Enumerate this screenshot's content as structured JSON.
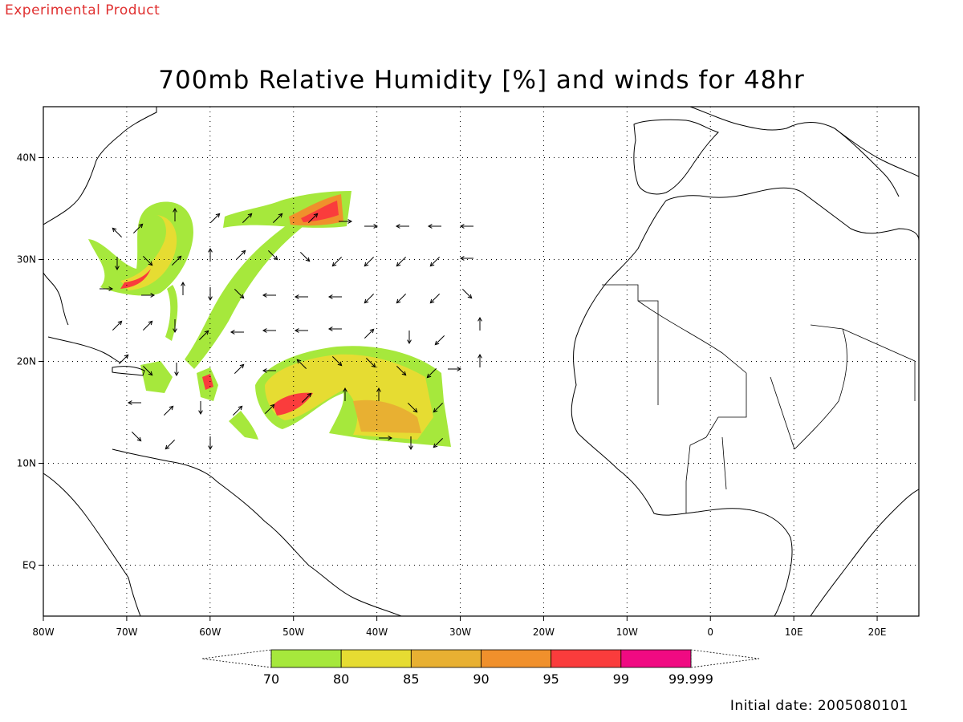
{
  "header": {
    "product_label": "Experimental Product",
    "title": "700mb Relative Humidity [%] and winds for 48hr"
  },
  "map": {
    "lon_ticks": [
      "80W",
      "70W",
      "60W",
      "50W",
      "40W",
      "30W",
      "20W",
      "10W",
      "0",
      "10E",
      "20E"
    ],
    "lat_ticks": [
      "40N",
      "30N",
      "20N",
      "10N",
      "EQ"
    ],
    "lon_range_deg": [
      -80,
      25
    ],
    "lat_range_deg": [
      -5,
      45
    ]
  },
  "colorbar": {
    "labels": [
      "70",
      "80",
      "85",
      "90",
      "95",
      "99",
      "99.999"
    ],
    "colors": [
      "#a6e83c",
      "#e6dc32",
      "#e8b032",
      "#f0902c",
      "#fa3c3c",
      "#f00a82"
    ]
  },
  "footer": {
    "initial_date": "Initial date: 2005080101"
  }
}
